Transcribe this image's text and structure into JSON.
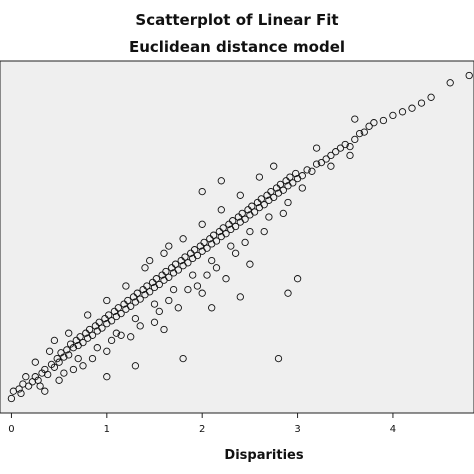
{
  "chart_data": {
    "type": "scatter",
    "title": "Scatterplot of Linear Fit",
    "subtitle": "Euclidean distance model",
    "xlabel": "Disparities",
    "ylabel": "",
    "xlim": [
      -0.12,
      4.85
    ],
    "ylim": [
      -0.15,
      4.7
    ],
    "xticks": [
      0,
      1,
      2,
      3,
      4
    ],
    "grid": false,
    "legend": "none",
    "colors": {
      "plot_bg": "#efefef",
      "point_stroke": "#111111",
      "page_bg": "#ffffff"
    },
    "points": [
      [
        0.0,
        0.05
      ],
      [
        0.02,
        0.15
      ],
      [
        0.08,
        0.18
      ],
      [
        0.12,
        0.25
      ],
      [
        0.18,
        0.22
      ],
      [
        0.22,
        0.28
      ],
      [
        0.25,
        0.35
      ],
      [
        0.28,
        0.3
      ],
      [
        0.32,
        0.4
      ],
      [
        0.35,
        0.45
      ],
      [
        0.38,
        0.38
      ],
      [
        0.42,
        0.52
      ],
      [
        0.45,
        0.48
      ],
      [
        0.48,
        0.6
      ],
      [
        0.5,
        0.55
      ],
      [
        0.52,
        0.68
      ],
      [
        0.55,
        0.62
      ],
      [
        0.58,
        0.72
      ],
      [
        0.6,
        0.65
      ],
      [
        0.62,
        0.8
      ],
      [
        0.65,
        0.75
      ],
      [
        0.68,
        0.85
      ],
      [
        0.7,
        0.78
      ],
      [
        0.72,
        0.9
      ],
      [
        0.75,
        0.82
      ],
      [
        0.78,
        0.95
      ],
      [
        0.8,
        0.88
      ],
      [
        0.82,
        1.0
      ],
      [
        0.85,
        0.92
      ],
      [
        0.88,
        1.05
      ],
      [
        0.9,
        0.98
      ],
      [
        0.92,
        1.1
      ],
      [
        0.95,
        1.02
      ],
      [
        0.98,
        1.15
      ],
      [
        1.0,
        1.08
      ],
      [
        1.02,
        1.2
      ],
      [
        1.05,
        1.12
      ],
      [
        1.08,
        1.25
      ],
      [
        1.1,
        1.18
      ],
      [
        1.12,
        1.3
      ],
      [
        1.15,
        1.22
      ],
      [
        1.18,
        1.35
      ],
      [
        1.2,
        1.28
      ],
      [
        1.22,
        1.4
      ],
      [
        1.25,
        1.32
      ],
      [
        1.28,
        1.45
      ],
      [
        1.3,
        1.38
      ],
      [
        1.32,
        1.5
      ],
      [
        1.35,
        1.42
      ],
      [
        1.38,
        1.55
      ],
      [
        1.4,
        1.48
      ],
      [
        1.42,
        1.6
      ],
      [
        1.45,
        1.52
      ],
      [
        1.48,
        1.65
      ],
      [
        1.5,
        1.58
      ],
      [
        1.52,
        1.7
      ],
      [
        1.55,
        1.62
      ],
      [
        1.58,
        1.75
      ],
      [
        1.6,
        1.68
      ],
      [
        1.62,
        1.8
      ],
      [
        1.65,
        1.72
      ],
      [
        1.68,
        1.85
      ],
      [
        1.7,
        1.78
      ],
      [
        1.72,
        1.9
      ],
      [
        1.75,
        1.82
      ],
      [
        1.78,
        1.95
      ],
      [
        1.8,
        1.88
      ],
      [
        1.82,
        2.0
      ],
      [
        1.85,
        1.92
      ],
      [
        1.88,
        2.05
      ],
      [
        1.9,
        1.98
      ],
      [
        1.92,
        2.1
      ],
      [
        1.95,
        2.02
      ],
      [
        1.98,
        2.15
      ],
      [
        2.0,
        2.08
      ],
      [
        2.02,
        2.2
      ],
      [
        2.05,
        2.12
      ],
      [
        2.08,
        2.25
      ],
      [
        2.1,
        2.18
      ],
      [
        2.12,
        2.3
      ],
      [
        2.15,
        2.22
      ],
      [
        2.18,
        2.35
      ],
      [
        2.2,
        2.28
      ],
      [
        2.22,
        2.4
      ],
      [
        2.25,
        2.32
      ],
      [
        2.28,
        2.45
      ],
      [
        2.3,
        2.38
      ],
      [
        2.32,
        2.5
      ],
      [
        2.35,
        2.42
      ],
      [
        2.38,
        2.55
      ],
      [
        2.4,
        2.48
      ],
      [
        2.42,
        2.6
      ],
      [
        2.45,
        2.52
      ],
      [
        2.48,
        2.65
      ],
      [
        2.5,
        2.58
      ],
      [
        2.52,
        2.7
      ],
      [
        2.55,
        2.62
      ],
      [
        2.58,
        2.75
      ],
      [
        2.6,
        2.68
      ],
      [
        2.62,
        2.8
      ],
      [
        2.65,
        2.72
      ],
      [
        2.68,
        2.85
      ],
      [
        2.7,
        2.78
      ],
      [
        2.72,
        2.9
      ],
      [
        2.75,
        2.82
      ],
      [
        2.78,
        2.95
      ],
      [
        2.8,
        2.88
      ],
      [
        2.82,
        3.0
      ],
      [
        2.85,
        2.92
      ],
      [
        2.88,
        3.05
      ],
      [
        2.9,
        2.98
      ],
      [
        2.92,
        3.1
      ],
      [
        2.95,
        3.02
      ],
      [
        2.98,
        3.15
      ],
      [
        3.0,
        3.08
      ],
      [
        3.05,
        3.12
      ],
      [
        3.1,
        3.2
      ],
      [
        3.15,
        3.18
      ],
      [
        3.2,
        3.28
      ],
      [
        3.25,
        3.3
      ],
      [
        3.3,
        3.35
      ],
      [
        3.35,
        3.4
      ],
      [
        3.4,
        3.45
      ],
      [
        3.45,
        3.5
      ],
      [
        3.5,
        3.55
      ],
      [
        3.55,
        3.52
      ],
      [
        3.6,
        3.62
      ],
      [
        3.65,
        3.7
      ],
      [
        3.7,
        3.72
      ],
      [
        3.75,
        3.8
      ],
      [
        3.8,
        3.85
      ],
      [
        3.9,
        3.88
      ],
      [
        4.0,
        3.95
      ],
      [
        4.1,
        4.0
      ],
      [
        4.2,
        4.05
      ],
      [
        4.3,
        4.12
      ],
      [
        4.4,
        4.2
      ],
      [
        4.6,
        4.4
      ],
      [
        4.8,
        4.5
      ],
      [
        0.1,
        0.12
      ],
      [
        0.3,
        0.22
      ],
      [
        0.55,
        0.4
      ],
      [
        0.7,
        0.6
      ],
      [
        0.9,
        0.75
      ],
      [
        1.1,
        0.95
      ],
      [
        1.3,
        1.15
      ],
      [
        1.5,
        1.35
      ],
      [
        1.7,
        1.55
      ],
      [
        1.9,
        1.75
      ],
      [
        2.1,
        1.95
      ],
      [
        2.3,
        2.15
      ],
      [
        2.5,
        2.35
      ],
      [
        2.7,
        2.55
      ],
      [
        2.9,
        2.75
      ],
      [
        0.4,
        0.7
      ],
      [
        0.6,
        0.95
      ],
      [
        0.8,
        1.2
      ],
      [
        1.0,
        1.4
      ],
      [
        1.2,
        1.6
      ],
      [
        1.4,
        1.85
      ],
      [
        1.6,
        2.05
      ],
      [
        1.8,
        2.25
      ],
      [
        2.0,
        2.45
      ],
      [
        2.2,
        2.65
      ],
      [
        2.4,
        2.85
      ],
      [
        0.5,
        0.3
      ],
      [
        0.75,
        0.5
      ],
      [
        1.0,
        0.7
      ],
      [
        1.25,
        0.9
      ],
      [
        1.5,
        1.1
      ],
      [
        1.75,
        1.3
      ],
      [
        2.0,
        1.5
      ],
      [
        2.25,
        1.7
      ],
      [
        2.5,
        1.9
      ],
      [
        1.05,
        0.85
      ],
      [
        1.15,
        0.92
      ],
      [
        1.35,
        1.05
      ],
      [
        1.55,
        1.25
      ],
      [
        1.85,
        1.55
      ],
      [
        2.05,
        1.75
      ],
      [
        2.35,
        2.05
      ],
      [
        2.65,
        2.35
      ],
      [
        1.0,
        0.35
      ],
      [
        1.3,
        0.5
      ],
      [
        1.6,
        1.0
      ],
      [
        1.8,
        0.6
      ],
      [
        2.1,
        1.3
      ],
      [
        2.4,
        1.45
      ],
      [
        2.9,
        1.5
      ],
      [
        2.8,
        0.6
      ],
      [
        3.0,
        1.7
      ],
      [
        2.0,
        2.9
      ],
      [
        2.2,
        3.05
      ],
      [
        3.6,
        3.9
      ],
      [
        3.2,
        3.5
      ],
      [
        0.25,
        0.55
      ],
      [
        0.45,
        0.85
      ],
      [
        1.45,
        1.95
      ],
      [
        1.65,
        2.15
      ],
      [
        2.6,
        3.1
      ],
      [
        2.75,
        3.25
      ],
      [
        0.15,
        0.35
      ],
      [
        0.35,
        0.15
      ],
      [
        0.65,
        0.45
      ],
      [
        0.85,
        0.6
      ],
      [
        1.65,
        1.4
      ],
      [
        1.95,
        1.6
      ],
      [
        2.15,
        1.85
      ],
      [
        2.45,
        2.2
      ],
      [
        2.85,
        2.6
      ],
      [
        3.05,
        2.95
      ],
      [
        3.35,
        3.25
      ],
      [
        3.55,
        3.4
      ]
    ]
  }
}
